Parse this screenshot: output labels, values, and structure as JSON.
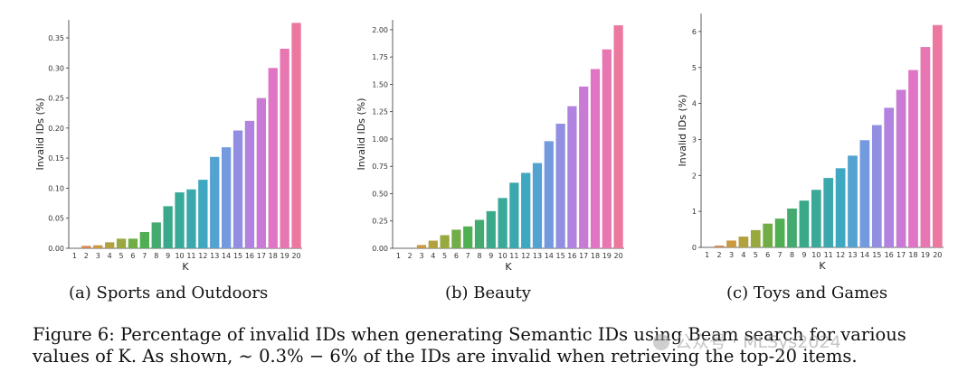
{
  "chart_data": [
    {
      "type": "bar",
      "subcaption": "(a) Sports and Outdoors",
      "xlabel": "K",
      "ylabel": "Invalid IDs (%)",
      "ylim": [
        0,
        0.38
      ],
      "yticks": [
        "0.00",
        "0.05",
        "0.10",
        "0.15",
        "0.20",
        "0.25",
        "0.30",
        "0.35"
      ],
      "categories": [
        "1",
        "2",
        "3",
        "4",
        "5",
        "6",
        "7",
        "8",
        "9",
        "10",
        "11",
        "12",
        "13",
        "14",
        "15",
        "16",
        "17",
        "18",
        "19",
        "20"
      ],
      "values": [
        0.0,
        0.004,
        0.005,
        0.01,
        0.016,
        0.016,
        0.027,
        0.043,
        0.07,
        0.093,
        0.098,
        0.114,
        0.152,
        0.168,
        0.196,
        0.212,
        0.25,
        0.3,
        0.332,
        0.375
      ],
      "grid": false,
      "legend": "none"
    },
    {
      "type": "bar",
      "subcaption": "(b) Beauty",
      "xlabel": "K",
      "ylabel": "Invalid IDs (%)",
      "ylim": [
        0,
        2.09
      ],
      "yticks": [
        "0.00",
        "0.25",
        "0.50",
        "0.75",
        "1.00",
        "1.25",
        "1.50",
        "1.75",
        "2.00"
      ],
      "categories": [
        "1",
        "2",
        "3",
        "4",
        "5",
        "6",
        "7",
        "8",
        "9",
        "10",
        "11",
        "12",
        "13",
        "14",
        "15",
        "16",
        "17",
        "18",
        "19",
        "20"
      ],
      "values": [
        0.0,
        0.0,
        0.03,
        0.07,
        0.12,
        0.17,
        0.2,
        0.26,
        0.34,
        0.46,
        0.6,
        0.69,
        0.78,
        0.98,
        1.14,
        1.3,
        1.48,
        1.64,
        1.82,
        2.04
      ],
      "grid": false,
      "legend": "none"
    },
    {
      "type": "bar",
      "subcaption": "(c) Toys and Games",
      "xlabel": "K",
      "ylabel": "Invalid IDs (%)",
      "ylim": [
        0,
        6.5
      ],
      "yticks": [
        "0",
        "1",
        "2",
        "3",
        "4",
        "5",
        "6"
      ],
      "categories": [
        "1",
        "2",
        "3",
        "4",
        "5",
        "6",
        "7",
        "8",
        "9",
        "10",
        "11",
        "12",
        "13",
        "14",
        "15",
        "16",
        "17",
        "18",
        "19",
        "20"
      ],
      "values": [
        0.0,
        0.05,
        0.19,
        0.3,
        0.48,
        0.66,
        0.8,
        1.08,
        1.3,
        1.6,
        1.93,
        2.2,
        2.55,
        2.98,
        3.4,
        3.88,
        4.38,
        4.93,
        5.57,
        6.18
      ],
      "grid": false,
      "legend": "none"
    }
  ],
  "colors": {
    "bar_gradient": [
      "#e07a6a",
      "#cc9740",
      "#9fa83e",
      "#55b04a",
      "#3aa982",
      "#39a9a3",
      "#3fa7c9",
      "#7d98e3",
      "#b77fe0",
      "#e274c4",
      "#ec78a0"
    ]
  },
  "caption": {
    "line1": "Figure 6: Percentage of invalid IDs when generating Semantic IDs using Beam search for various",
    "line2": "values of K. As shown, ∼ 0.3% − 6% of the IDs are invalid when retrieving the top-20 items."
  },
  "watermark": {
    "text": "公众号 · MLSys2024",
    "icon": "wechat-icon"
  }
}
